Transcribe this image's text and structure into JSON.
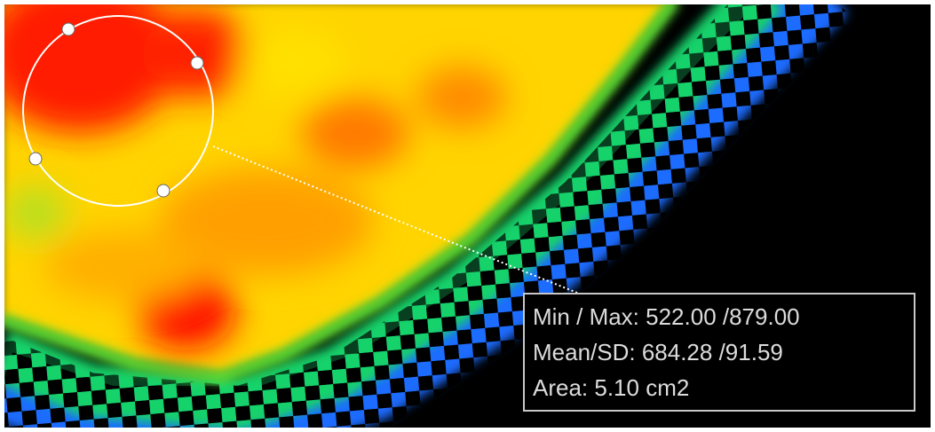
{
  "roi_stats": {
    "lines": [
      "Min / Max: 522.00 /879.00",
      "Mean/SD: 684.28 /91.59",
      "Area: 5.10 cm2"
    ]
  }
}
